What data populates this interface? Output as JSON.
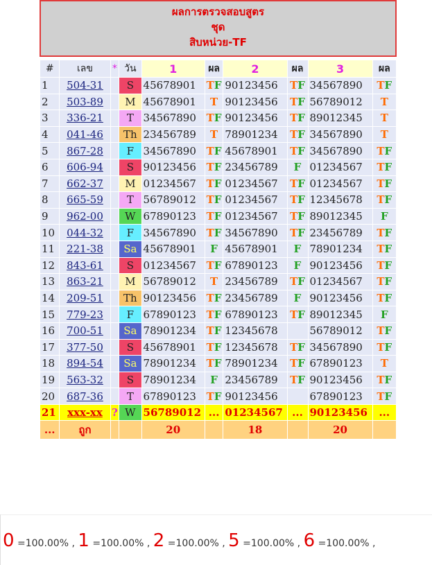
{
  "header": {
    "title": "ผลการตรวจสอบสูตร",
    "subtitle": "ชุด",
    "formula": "สิบหน่วย-TF"
  },
  "table": {
    "columns": [
      "#",
      "เลข",
      "*",
      "วัน",
      "1",
      "ผล",
      "2",
      "ผล",
      "3",
      "ผล"
    ],
    "rows": [
      [
        1,
        "504-31",
        null,
        "S",
        "45678901",
        "TF",
        "90123456",
        "TF",
        "34567890",
        "TF"
      ],
      [
        2,
        "503-89",
        null,
        "M",
        "45678901",
        "T",
        "90123456",
        "TF",
        "56789012",
        "T"
      ],
      [
        3,
        "336-21",
        null,
        "T",
        "34567890",
        "TF",
        "90123456",
        "TF",
        "89012345",
        "T"
      ],
      [
        4,
        "041-46",
        null,
        "Th",
        "23456789",
        "T",
        "78901234",
        "TF",
        "34567890",
        "T"
      ],
      [
        5,
        "867-28",
        null,
        "F",
        "34567890",
        "TF",
        "45678901",
        "TF",
        "34567890",
        "TF"
      ],
      [
        6,
        "606-94",
        null,
        "S",
        "90123456",
        "TF",
        "23456789",
        "F",
        "01234567",
        "TF"
      ],
      [
        7,
        "662-37",
        null,
        "M",
        "01234567",
        "TF",
        "01234567",
        "TF",
        "01234567",
        "TF"
      ],
      [
        8,
        "665-59",
        null,
        "T",
        "56789012",
        "TF",
        "01234567",
        "TF",
        "12345678",
        "TF"
      ],
      [
        9,
        "962-00",
        null,
        "W",
        "67890123",
        "TF",
        "01234567",
        "TF",
        "89012345",
        "F"
      ],
      [
        10,
        "044-32",
        null,
        "F",
        "34567890",
        "TF",
        "34567890",
        "TF",
        "23456789",
        "TF"
      ],
      [
        11,
        "221-38",
        null,
        "Sa",
        "45678901",
        "F",
        "45678901",
        "F",
        "78901234",
        "TF"
      ],
      [
        12,
        "843-61",
        null,
        "S",
        "01234567",
        "TF",
        "67890123",
        "F",
        "90123456",
        "TF"
      ],
      [
        13,
        "863-21",
        null,
        "M",
        "56789012",
        "T",
        "23456789",
        "TF",
        "01234567",
        "TF"
      ],
      [
        14,
        "209-51",
        null,
        "Th",
        "90123456",
        "TF",
        "23456789",
        "F",
        "90123456",
        "TF"
      ],
      [
        15,
        "779-23",
        null,
        "F",
        "67890123",
        "TF",
        "67890123",
        "TF",
        "89012345",
        "F"
      ],
      [
        16,
        "700-51",
        null,
        "Sa",
        "78901234",
        "TF",
        "12345678",
        null,
        "56789012",
        "TF"
      ],
      [
        17,
        "377-50",
        null,
        "S",
        "45678901",
        "TF",
        "12345678",
        "TF",
        "34567890",
        "TF"
      ],
      [
        18,
        "894-54",
        null,
        "Sa",
        "78901234",
        "TF",
        "78901234",
        "TF",
        "67890123",
        "T"
      ],
      [
        19,
        "563-32",
        null,
        "S",
        "78901234",
        "F",
        "23456789",
        "TF",
        "90123456",
        "TF"
      ],
      [
        20,
        "687-36",
        null,
        "T",
        "67890123",
        "TF",
        "90123456",
        null,
        "67890123",
        "TF"
      ],
      [
        21,
        "xxx-xx",
        "?",
        "W",
        "56789012",
        "...",
        "01234567",
        "...",
        "90123456",
        "..."
      ]
    ],
    "footer": [
      "...",
      "ถูก",
      null,
      null,
      20,
      null,
      18,
      null,
      20,
      null
    ]
  },
  "day_colors": {
    "S": "#ee4466",
    "M": "#fff3b3",
    "T": "#f4a8f4",
    "Th": "#f7c26a",
    "F": "#66eeff",
    "W": "#55d655",
    "Sa": "#5566cc"
  },
  "day_text_colors": {
    "Sa": "#ffff66"
  },
  "result_colors": {
    "T": "#ff6a00",
    "F": "#22a022"
  },
  "stats": {
    "separator": ",",
    "items": [
      {
        "digit": "0",
        "label": "=100.00%"
      },
      {
        "digit": "1",
        "label": "=100.00%"
      },
      {
        "digit": "2",
        "label": "=100.00%"
      },
      {
        "digit": "5",
        "label": "=100.00%"
      },
      {
        "digit": "6",
        "label": "=100.00%"
      }
    ]
  }
}
